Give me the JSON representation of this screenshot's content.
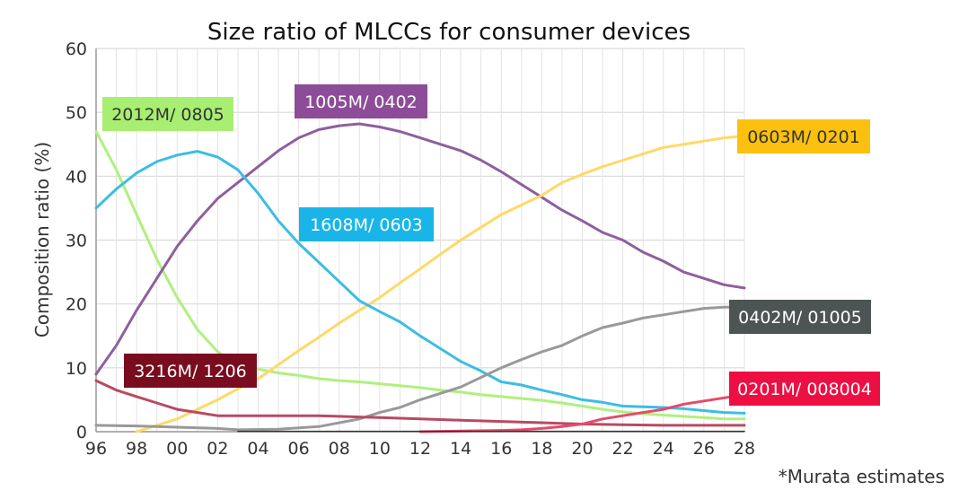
{
  "chart_data": {
    "type": "line",
    "title": "Size ratio of MLCCs for consumer devices",
    "xlabel": "",
    "ylabel": "Composition ratio (%)",
    "ylim": [
      0,
      60
    ],
    "yticks": [
      0,
      10,
      20,
      30,
      40,
      50,
      60
    ],
    "xlim": [
      1996,
      2028
    ],
    "xticks": [
      1996,
      1998,
      2000,
      2002,
      2004,
      2006,
      2008,
      2010,
      2012,
      2014,
      2016,
      2018,
      2020,
      2022,
      2024,
      2026,
      2028
    ],
    "xtick_labels": [
      "96",
      "98",
      "00",
      "02",
      "04",
      "06",
      "08",
      "10",
      "12",
      "14",
      "16",
      "18",
      "20",
      "22",
      "24",
      "26",
      "28"
    ],
    "grid": true,
    "footnote": "*Murata estimates",
    "series": [
      {
        "name": "2012M/ 0805",
        "color": "#b0f07e",
        "label_bg": "#a8ee72",
        "label_fg": "#333333",
        "x": [
          1996,
          1997,
          1998,
          1999,
          2000,
          2001,
          2002,
          2003,
          2004,
          2005,
          2006,
          2007,
          2008,
          2009,
          2010,
          2011,
          2012,
          2013,
          2014,
          2015,
          2016,
          2017,
          2018,
          2019,
          2020,
          2021,
          2022,
          2023,
          2024,
          2025,
          2026,
          2027,
          2028
        ],
        "values": [
          47,
          41,
          34,
          27,
          21,
          16,
          12.5,
          10.5,
          9.8,
          9.2,
          8.8,
          8.3,
          8.0,
          7.8,
          7.5,
          7.2,
          6.9,
          6.5,
          6.2,
          5.8,
          5.5,
          5.2,
          4.9,
          4.5,
          4.0,
          3.5,
          3.1,
          2.8,
          2.6,
          2.4,
          2.2,
          2.0,
          2.0
        ]
      },
      {
        "name": "1005M/ 0402",
        "color": "#8e5f9e",
        "label_bg": "#8d4c98",
        "label_fg": "#ffffff",
        "x": [
          1996,
          1997,
          1998,
          1999,
          2000,
          2001,
          2002,
          2003,
          2004,
          2005,
          2006,
          2007,
          2008,
          2009,
          2010,
          2011,
          2012,
          2013,
          2014,
          2015,
          2016,
          2017,
          2018,
          2019,
          2020,
          2021,
          2022,
          2023,
          2024,
          2025,
          2026,
          2027,
          2028
        ],
        "values": [
          9,
          13.5,
          19,
          24,
          29,
          33,
          36.5,
          39,
          41.5,
          44,
          46,
          47.3,
          47.9,
          48.2,
          47.7,
          47.0,
          46.0,
          45.0,
          44.0,
          42.5,
          40.7,
          38.7,
          36.7,
          34.7,
          33.0,
          31.2,
          30.0,
          28.1,
          26.7,
          25.0,
          24.0,
          23.0,
          22.5
        ]
      },
      {
        "name": "0603M/ 0201",
        "color": "#ffd966",
        "label_bg": "#fbc10e",
        "label_fg": "#333333",
        "x": [
          1998,
          1999,
          2000,
          2001,
          2002,
          2003,
          2004,
          2005,
          2006,
          2007,
          2008,
          2009,
          2010,
          2011,
          2012,
          2013,
          2014,
          2015,
          2016,
          2017,
          2018,
          2019,
          2020,
          2021,
          2022,
          2023,
          2024,
          2025,
          2026,
          2027,
          2028
        ],
        "values": [
          0,
          1,
          2,
          3.5,
          5,
          6.7,
          8.3,
          10.5,
          12.7,
          14.8,
          17,
          19,
          21,
          23.3,
          25.5,
          27.8,
          30,
          32,
          34,
          35.5,
          37,
          39,
          40.3,
          41.5,
          42.5,
          43.5,
          44.5,
          45,
          45.5,
          46,
          46.3
        ]
      },
      {
        "name": "1608M/ 0603",
        "color": "#3cbde4",
        "label_bg": "#1ab5e8",
        "label_fg": "#ffffff",
        "x": [
          1996,
          1997,
          1998,
          1999,
          2000,
          2001,
          2002,
          2003,
          2004,
          2005,
          2006,
          2007,
          2008,
          2009,
          2010,
          2011,
          2012,
          2013,
          2014,
          2015,
          2016,
          2017,
          2018,
          2019,
          2020,
          2021,
          2022,
          2023,
          2024,
          2025,
          2026,
          2027,
          2028
        ],
        "values": [
          35,
          38,
          40.5,
          42.3,
          43.3,
          43.9,
          43.0,
          41.0,
          37.3,
          33.0,
          29.5,
          26.5,
          23.5,
          20.5,
          18.8,
          17.2,
          15.0,
          13.0,
          11.0,
          9.5,
          7.8,
          7.3,
          6.5,
          5.8,
          5.0,
          4.6,
          4.0,
          3.9,
          3.8,
          3.6,
          3.3,
          3.0,
          2.9
        ]
      },
      {
        "name": "0402M/ 01005",
        "color": "#999999",
        "label_bg": "#4d5454",
        "label_fg": "#ffffff",
        "x": [
          1996,
          1998,
          2000,
          2002,
          2003,
          2005,
          2007,
          2009,
          2010,
          2011,
          2012,
          2013,
          2014,
          2015,
          2016,
          2017,
          2018,
          2019,
          2020,
          2021,
          2022,
          2023,
          2024,
          2025,
          2026,
          2027,
          2028
        ],
        "values": [
          1,
          0.9,
          0.7,
          0.5,
          0.3,
          0.4,
          0.8,
          2.0,
          3.0,
          3.8,
          5.0,
          6.0,
          7.0,
          8.5,
          10.0,
          11.3,
          12.5,
          13.5,
          15.0,
          16.3,
          17.0,
          17.8,
          18.3,
          18.8,
          19.3,
          19.5,
          19.5
        ]
      },
      {
        "name": "3216M/ 1206",
        "color": "#b84a62",
        "label_bg": "#7a0c1f",
        "label_fg": "#ffffff",
        "x": [
          1996,
          1997,
          1998,
          1999,
          2000,
          2001,
          2002,
          2003,
          2004,
          2005,
          2006,
          2007,
          2008,
          2009,
          2010,
          2012,
          2014,
          2016,
          2018,
          2020,
          2022,
          2024,
          2026,
          2028
        ],
        "values": [
          8,
          6.5,
          5.5,
          4.5,
          3.5,
          3.0,
          2.5,
          2.5,
          2.5,
          2.5,
          2.5,
          2.5,
          2.4,
          2.3,
          2.2,
          2.0,
          1.8,
          1.6,
          1.4,
          1.2,
          1.1,
          1.0,
          1.0,
          1.0
        ]
      },
      {
        "name": "0201M/ 008004",
        "color": "#e8496b",
        "label_bg": "#ee0f42",
        "label_fg": "#ffffff",
        "x": [
          2012,
          2014,
          2016,
          2017,
          2018,
          2019,
          2020,
          2021,
          2022,
          2023,
          2024,
          2025,
          2026,
          2027,
          2028
        ],
        "values": [
          0,
          0.1,
          0.2,
          0.3,
          0.5,
          0.8,
          1.2,
          2.0,
          2.5,
          3.0,
          3.5,
          4.3,
          4.8,
          5.3,
          5.8
        ]
      },
      {
        "name": "baseline",
        "color": "#333333",
        "x": [
          2003,
          2028
        ],
        "values": [
          0.05,
          0.05
        ],
        "no_label": true
      }
    ]
  }
}
